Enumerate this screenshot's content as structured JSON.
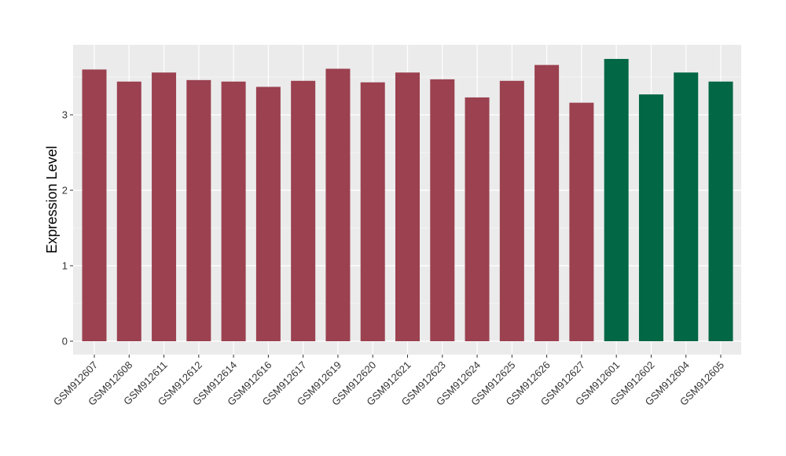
{
  "chart_data": {
    "type": "bar",
    "title": "",
    "xlabel": "",
    "ylabel": "Expression Level",
    "ylim": [
      -0.17,
      3.9
    ],
    "yticks": [
      0,
      1,
      2,
      3
    ],
    "grid": true,
    "legend": "none",
    "colors": {
      "group_a": "#9b4150",
      "group_b": "#016744",
      "panel_bg": "#ebebeb",
      "grid": "#ffffff"
    },
    "categories": [
      "GSM912607",
      "GSM912608",
      "GSM912611",
      "GSM912612",
      "GSM912614",
      "GSM912616",
      "GSM912617",
      "GSM912619",
      "GSM912620",
      "GSM912621",
      "GSM912623",
      "GSM912624",
      "GSM912625",
      "GSM912626",
      "GSM912627",
      "GSM912601",
      "GSM912602",
      "GSM912604",
      "GSM912605"
    ],
    "values": [
      3.6,
      3.44,
      3.56,
      3.46,
      3.44,
      3.37,
      3.45,
      3.61,
      3.43,
      3.56,
      3.47,
      3.23,
      3.45,
      3.66,
      3.16,
      3.74,
      3.27,
      3.56,
      3.44
    ],
    "groups": [
      "a",
      "a",
      "a",
      "a",
      "a",
      "a",
      "a",
      "a",
      "a",
      "a",
      "a",
      "a",
      "a",
      "a",
      "a",
      "b",
      "b",
      "b",
      "b"
    ]
  }
}
